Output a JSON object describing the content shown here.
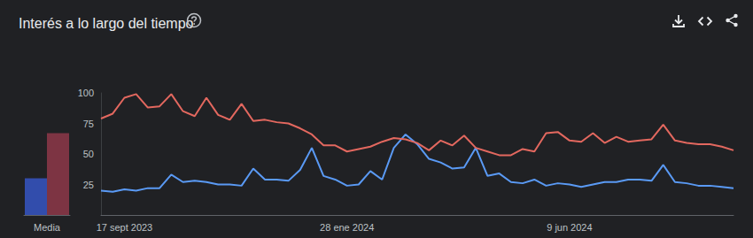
{
  "chart_data": {
    "type": "line",
    "title": "Interés a lo largo del tiempo",
    "categories": [
      null,
      null,
      "17 sept 2023",
      null,
      null,
      null,
      null,
      null,
      null,
      null,
      null,
      null,
      null,
      null,
      null,
      null,
      null,
      null,
      null,
      null,
      null,
      "28 ene 2024",
      null,
      null,
      null,
      null,
      null,
      null,
      null,
      null,
      null,
      null,
      null,
      null,
      null,
      null,
      null,
      null,
      null,
      null,
      "9 jun 2024",
      null,
      null,
      null,
      null,
      null,
      null,
      null,
      null,
      null,
      null,
      null,
      null,
      null,
      null
    ],
    "series": [
      {
        "color": "#5a9af5",
        "values": [
          20,
          19,
          21,
          20,
          22,
          22,
          33,
          27,
          28,
          27,
          25,
          25,
          24,
          38,
          29,
          29,
          28,
          37,
          55,
          32,
          29,
          24,
          25,
          36,
          29,
          55,
          66,
          58,
          46,
          43,
          38,
          39,
          55,
          32,
          34,
          27,
          26,
          29,
          24,
          26,
          25,
          23,
          25,
          27,
          27,
          29,
          29,
          28,
          41,
          27,
          26,
          24,
          24,
          23,
          22
        ],
        "average": 30
      },
      {
        "color": "#e3685f",
        "values": [
          79,
          83,
          96,
          99,
          88,
          89,
          99,
          85,
          81,
          96,
          82,
          78,
          91,
          77,
          78,
          76,
          75,
          71,
          66,
          57,
          57,
          52,
          54,
          56,
          60,
          63,
          62,
          59,
          53,
          61,
          57,
          65,
          55,
          52,
          49,
          49,
          54,
          52,
          67,
          68,
          61,
          60,
          67,
          59,
          64,
          60,
          61,
          62,
          74,
          61,
          59,
          58,
          58,
          56,
          53
        ],
        "average": 67
      }
    ],
    "average_label": "Media",
    "ylim": [
      0,
      100
    ],
    "yticks": [
      25,
      50,
      75,
      100
    ],
    "grid": false
  }
}
